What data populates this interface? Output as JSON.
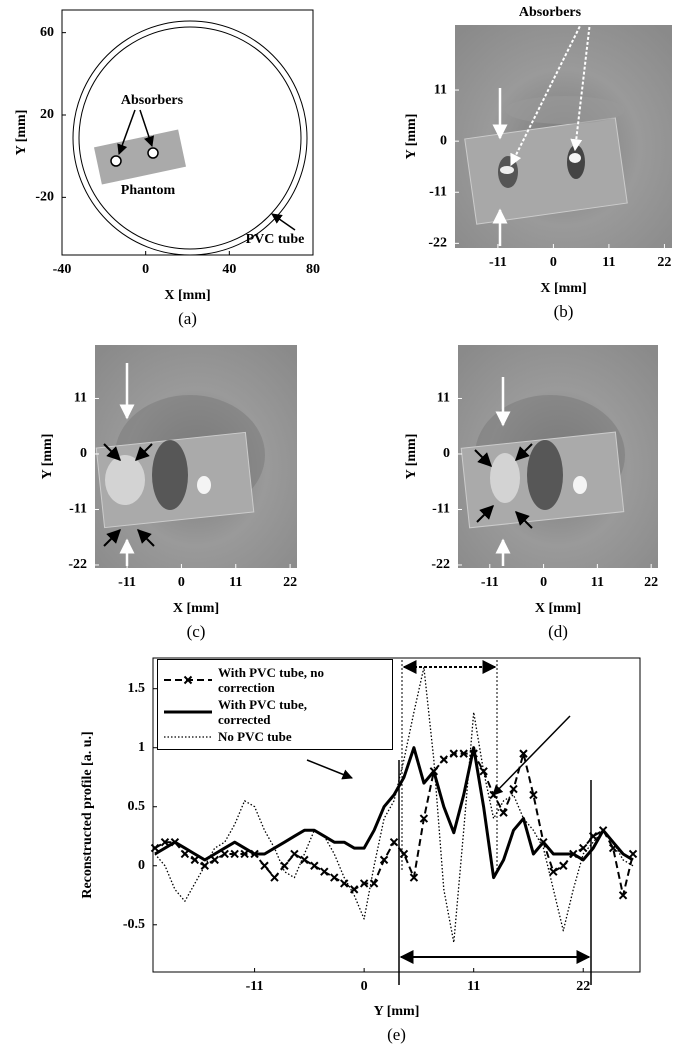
{
  "chart_data": [
    {
      "type": "schematic",
      "xlim": [
        -40,
        80
      ],
      "xticks": [
        -40,
        0,
        40,
        80
      ],
      "ylim": [
        -48,
        71
      ],
      "yticks": [
        -20,
        20,
        60
      ],
      "xlabel": "X [mm]",
      "ylabel": "Y [mm]",
      "caption": "(a)",
      "annotations": [
        "Absorbers",
        "Phantom",
        "PVC tube"
      ]
    },
    {
      "type": "image",
      "xlim": [
        -19.5,
        23.5
      ],
      "xticks": [
        -11,
        0,
        11,
        22
      ],
      "ylim": [
        -23,
        25
      ],
      "yticks": [
        -22,
        -11,
        0,
        11
      ],
      "xlabel": "X [mm]",
      "ylabel": "Y [mm]",
      "caption": "(b)",
      "annotations": [
        "Absorbers"
      ]
    },
    {
      "type": "image",
      "xlim": [
        -17.5,
        23.4
      ],
      "xticks": [
        -11,
        0,
        11,
        22
      ],
      "ylim": [
        -22.6,
        21.6
      ],
      "yticks": [
        -22,
        -11,
        0,
        11
      ],
      "xlabel": "X [mm]",
      "ylabel": "Y [mm]",
      "caption": "(c)"
    },
    {
      "type": "image",
      "xlim": [
        -17.5,
        23.4
      ],
      "xticks": [
        -11,
        0,
        11,
        22
      ],
      "ylim": [
        -22.6,
        21.6
      ],
      "yticks": [
        -22,
        -11,
        0,
        11
      ],
      "xlabel": "X [mm]",
      "ylabel": "Y [mm]",
      "caption": "(d)"
    },
    {
      "type": "line",
      "xlabel": "Y [mm]",
      "ylabel": "Reconstructed profile [a. u.]",
      "caption": "(e)",
      "legend": "upper left",
      "xlim": [
        -21.2,
        27.7
      ],
      "xticks": [
        -11,
        0,
        11,
        22
      ],
      "ylim": [
        -0.9,
        1.76
      ],
      "yticks": [
        -0.5,
        0,
        0.5,
        1,
        1.5
      ],
      "x": [
        -21,
        -20,
        -19,
        -18,
        -17,
        -16,
        -15,
        -14,
        -13,
        -12,
        -11,
        -10,
        -9,
        -8,
        -7,
        -6,
        -5,
        -4,
        -3,
        -2,
        -1,
        0,
        1,
        2,
        3,
        4,
        5,
        6,
        7,
        8,
        9,
        10,
        11,
        12,
        13,
        14,
        15,
        16,
        17,
        18,
        19,
        20,
        21,
        22,
        23,
        24,
        25,
        26,
        27
      ],
      "series": [
        {
          "name": "With PVC tube, no correction",
          "color": "#000",
          "style": "dashed-x",
          "values": [
            0.15,
            0.2,
            0.2,
            0.1,
            0.05,
            0.0,
            0.05,
            0.1,
            0.1,
            0.1,
            0.1,
            0.0,
            -0.1,
            0.0,
            0.1,
            0.05,
            0.0,
            -0.05,
            -0.1,
            -0.15,
            -0.2,
            -0.15,
            -0.15,
            0.05,
            0.2,
            0.1,
            -0.1,
            0.4,
            0.8,
            0.9,
            0.95,
            0.95,
            0.95,
            0.8,
            0.6,
            0.45,
            0.65,
            0.95,
            0.6,
            0.2,
            -0.05,
            0.0,
            0.1,
            0.15,
            0.25,
            0.3,
            0.15,
            -0.25,
            0.1
          ]
        },
        {
          "name": "With PVC tube, corrected",
          "color": "#000",
          "style": "solid",
          "values": [
            0.1,
            0.15,
            0.2,
            0.15,
            0.1,
            0.05,
            0.1,
            0.15,
            0.2,
            0.15,
            0.1,
            0.1,
            0.15,
            0.2,
            0.25,
            0.3,
            0.3,
            0.25,
            0.2,
            0.2,
            0.15,
            0.15,
            0.3,
            0.5,
            0.6,
            0.75,
            1.0,
            0.7,
            0.8,
            0.5,
            0.28,
            0.6,
            1.0,
            0.5,
            -0.1,
            0.05,
            0.3,
            0.4,
            0.1,
            0.2,
            0.1,
            0.1,
            0.1,
            0.05,
            0.15,
            0.3,
            0.2,
            0.1,
            0.05
          ]
        },
        {
          "name": "No PVC tube",
          "color": "#000",
          "style": "dotted",
          "values": [
            0.1,
            0.0,
            -0.2,
            -0.3,
            -0.15,
            0.0,
            0.15,
            0.2,
            0.35,
            0.55,
            0.5,
            0.3,
            0.15,
            -0.05,
            -0.1,
            0.1,
            0.3,
            0.25,
            0.1,
            -0.1,
            -0.25,
            -0.45,
            0.0,
            0.4,
            0.55,
            0.9,
            1.3,
            1.68,
            0.9,
            -0.2,
            -0.65,
            0.3,
            1.3,
            0.8,
            0.4,
            0.55,
            0.6,
            0.4,
            0.3,
            0.15,
            -0.2,
            -0.55,
            -0.2,
            0.1,
            0.2,
            0.3,
            0.2,
            0.05,
            0.0
          ]
        }
      ]
    }
  ]
}
